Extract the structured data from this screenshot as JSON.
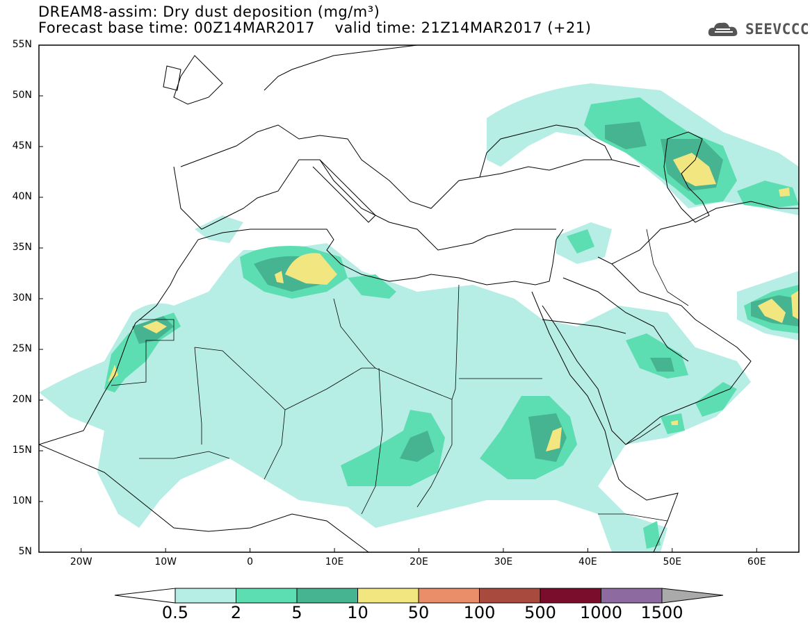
{
  "title_line1": "DREAM8-assim: Dry dust deposition (mg/m³)",
  "title_line2": "Forecast base time: 00Z14MAR2017    valid time: 21Z14MAR2017 (+21)",
  "logo_text": "SEEVCCC",
  "map": {
    "projection": "lat-lon",
    "lon_range": [
      -25,
      65
    ],
    "lat_range": [
      5,
      55
    ],
    "lat_labels": [
      "55N",
      "50N",
      "45N",
      "40N",
      "35N",
      "30N",
      "25N",
      "20N",
      "15N",
      "10N",
      "5N"
    ],
    "lon_labels": [
      "20W",
      "10W",
      "0",
      "10E",
      "20E",
      "30E",
      "40E",
      "50E",
      "60E"
    ]
  },
  "colorbar": {
    "labels": [
      "0.5",
      "2",
      "5",
      "10",
      "50",
      "100",
      "500",
      "1000",
      "1500"
    ],
    "colors": [
      "#b6ede4",
      "#5cdeb2",
      "#46b490",
      "#f1e680",
      "#e98e68",
      "#a84a3e",
      "#7a0c2c",
      "#8d6ba0",
      "#aaaaaa"
    ]
  }
}
